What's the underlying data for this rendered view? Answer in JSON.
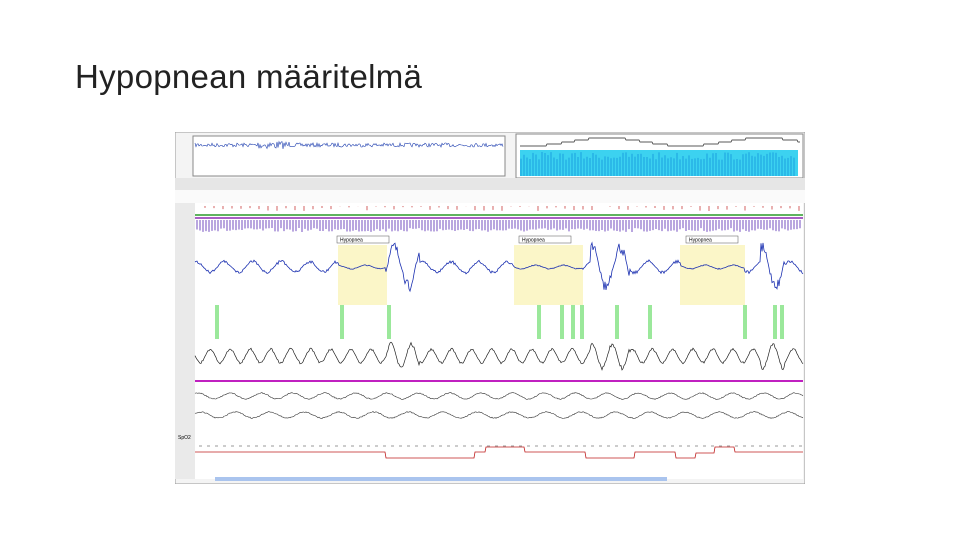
{
  "header": {
    "title": "Hypopnean määritelmä"
  },
  "screenshot": {
    "events": [
      "Hypopnea",
      "Hypopnea",
      "Hypopnea"
    ],
    "spo2_label": "SpO2"
  }
}
